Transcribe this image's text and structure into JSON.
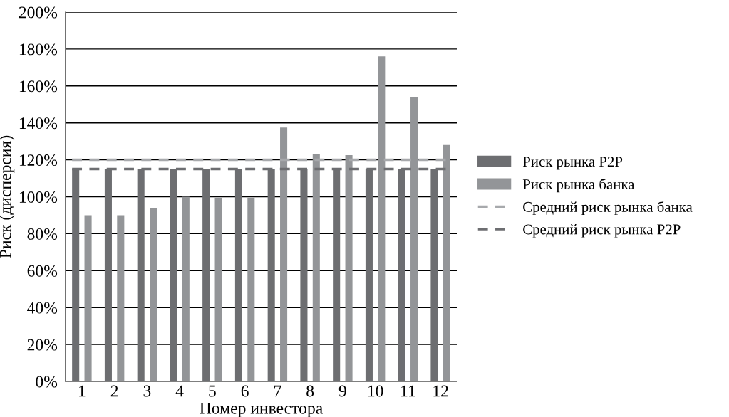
{
  "chart_data": {
    "type": "bar",
    "xlabel": "Номер инвестора",
    "ylabel": "Риск (дисперсия)",
    "categories": [
      "1",
      "2",
      "3",
      "4",
      "5",
      "6",
      "7",
      "8",
      "9",
      "10",
      "11",
      "12"
    ],
    "series": [
      {
        "name": "Риск рынка P2P",
        "color": "#6d6e71",
        "values": [
          115,
          115,
          115,
          115,
          115,
          115,
          115,
          115,
          115,
          115,
          115,
          115
        ]
      },
      {
        "name": "Риск рынка банка",
        "color": "#939598",
        "values": [
          90,
          90,
          94,
          100,
          99.5,
          99.5,
          137.5,
          123,
          122.5,
          176,
          154,
          128
        ]
      }
    ],
    "ref_lines": [
      {
        "axis": "y",
        "value": 120,
        "label": "Средний риск рынка банка",
        "color": "#a7a9ac",
        "line_style": "dashed"
      },
      {
        "axis": "y",
        "value": 115,
        "label": "Средний риск рынка P2P",
        "color": "#6d6e71",
        "line_style": "dashed"
      }
    ],
    "ylim": [
      0,
      200
    ],
    "yticks": [
      {
        "value": 0,
        "label": "0%"
      },
      {
        "value": 20,
        "label": "20%"
      },
      {
        "value": 40,
        "label": "40%"
      },
      {
        "value": 60,
        "label": "60%"
      },
      {
        "value": 80,
        "label": "80%"
      },
      {
        "value": 100,
        "label": "100%"
      },
      {
        "value": 120,
        "label": "120%"
      },
      {
        "value": 140,
        "label": "140%"
      },
      {
        "value": 160,
        "label": "160%"
      },
      {
        "value": 180,
        "label": "180%"
      },
      {
        "value": 200,
        "label": "200%"
      }
    ],
    "grid": "y",
    "legend": "right"
  }
}
